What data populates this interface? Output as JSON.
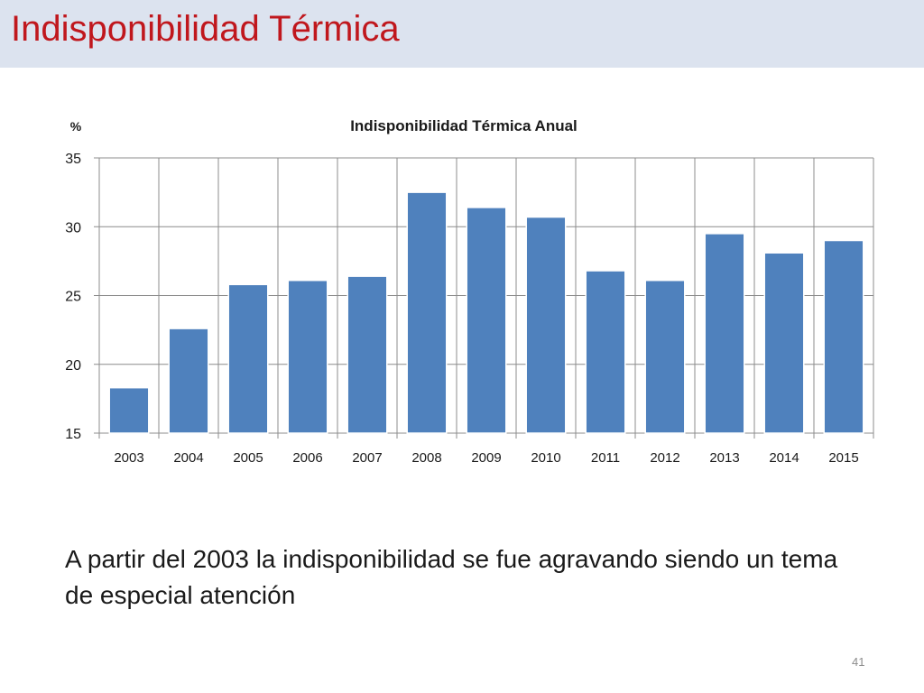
{
  "slide": {
    "title": "Indisponibilidad Térmica",
    "caption": "A partir del 2003 la indisponibilidad se fue agravando  siendo un tema  de especial atención",
    "page_number": "41"
  },
  "colors": {
    "header_bg": "#dce3ef",
    "title": "#c0171d",
    "bar": "#4f81bd",
    "gridline": "#8c8c8c"
  },
  "chart_data": {
    "type": "bar",
    "title": "Indisponibilidad Térmica Anual",
    "ylabel": "%",
    "xlabel": "",
    "categories": [
      "2003",
      "2004",
      "2005",
      "2006",
      "2007",
      "2008",
      "2009",
      "2010",
      "2011",
      "2012",
      "2013",
      "2014",
      "2015"
    ],
    "values": [
      18.3,
      22.6,
      25.8,
      26.1,
      26.4,
      32.5,
      31.4,
      30.7,
      26.8,
      26.1,
      29.5,
      28.1,
      29.0
    ],
    "ylim": [
      15,
      35
    ],
    "yticks": [
      15,
      20,
      25,
      30,
      35
    ],
    "grid": true,
    "legend": "none"
  }
}
